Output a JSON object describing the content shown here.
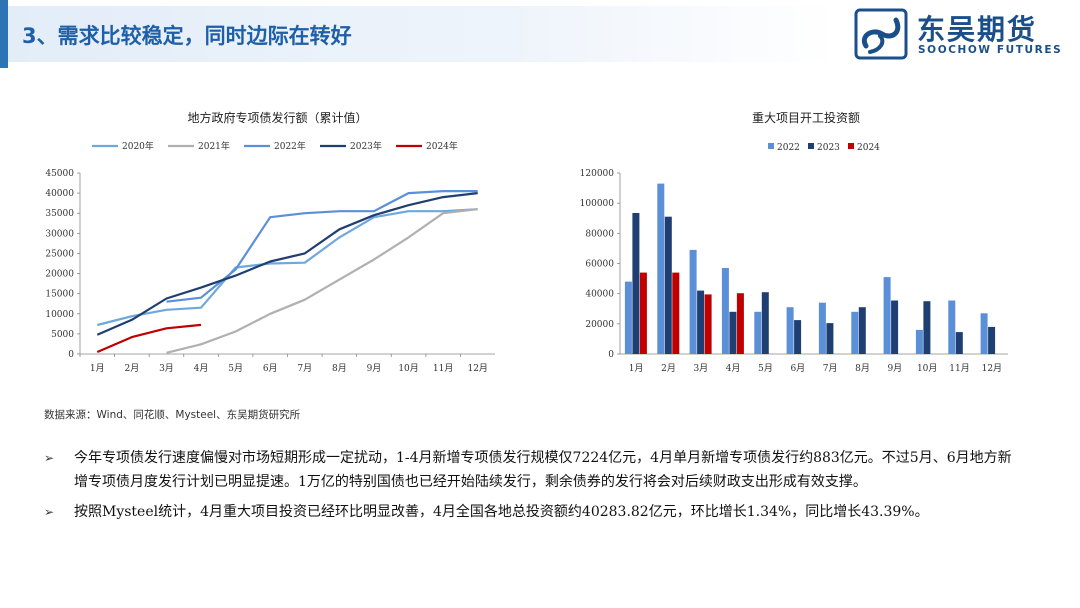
{
  "header": {
    "title": "3、需求比较稳定，同时边际在转好",
    "logo_name": "东吴期货",
    "logo_sub": "SOOCHOW FUTURES"
  },
  "chart_data": [
    {
      "type": "line",
      "title": "地方政府专项债发行额（累计值）",
      "categories": [
        "1月",
        "2月",
        "3月",
        "4月",
        "5月",
        "6月",
        "7月",
        "8月",
        "9月",
        "10月",
        "11月",
        "12月"
      ],
      "ylim": [
        0,
        45000
      ],
      "yticks": [
        0,
        5000,
        10000,
        15000,
        20000,
        25000,
        30000,
        35000,
        40000,
        45000
      ],
      "legend_position": "top",
      "grid": false,
      "series": [
        {
          "name": "2020年",
          "color": "#6fa8dc",
          "values": [
            7200,
            9400,
            11000,
            11500,
            21500,
            22500,
            22700,
            29000,
            34000,
            35500,
            35500,
            36000
          ]
        },
        {
          "name": "2021年",
          "color": "#b0b0b0",
          "values": [
            null,
            null,
            300,
            2400,
            5600,
            10000,
            13500,
            18500,
            23500,
            29000,
            35000,
            36000
          ]
        },
        {
          "name": "2022年",
          "color": "#5b8fd8",
          "values": [
            null,
            null,
            13000,
            14000,
            21000,
            34000,
            35000,
            35500,
            35500,
            40000,
            40500,
            40500
          ]
        },
        {
          "name": "2023年",
          "color": "#1f3f73",
          "values": [
            4800,
            8500,
            13800,
            16500,
            19500,
            23000,
            25000,
            31000,
            34500,
            37000,
            39000,
            40000
          ]
        },
        {
          "name": "2024年",
          "color": "#c00000",
          "values": [
            500,
            4200,
            6400,
            7224,
            null,
            null,
            null,
            null,
            null,
            null,
            null,
            null
          ]
        }
      ]
    },
    {
      "type": "bar",
      "title": "重大项目开工投资额",
      "categories": [
        "1月",
        "2月",
        "3月",
        "4月",
        "5月",
        "6月",
        "7月",
        "8月",
        "9月",
        "10月",
        "11月",
        "12月"
      ],
      "ylim": [
        0,
        120000
      ],
      "yticks": [
        0,
        20000,
        40000,
        60000,
        80000,
        100000,
        120000
      ],
      "legend_position": "top",
      "grid": false,
      "series": [
        {
          "name": "2022",
          "color": "#5b8fd8",
          "values": [
            48000,
            113000,
            69000,
            57000,
            28000,
            31000,
            34000,
            28000,
            51000,
            16000,
            35500,
            27000
          ]
        },
        {
          "name": "2023",
          "color": "#1f3f73",
          "values": [
            93500,
            91000,
            42000,
            28000,
            41000,
            22500,
            20500,
            31000,
            35500,
            35000,
            14500,
            18000
          ]
        },
        {
          "name": "2024",
          "color": "#c00000",
          "values": [
            54000,
            54000,
            39500,
            40283.82,
            null,
            null,
            null,
            null,
            null,
            null,
            null,
            null
          ]
        }
      ]
    }
  ],
  "source": "数据来源：Wind、同花顺、Mysteel、东吴期货研究所",
  "bullets": [
    "今年专项债发行速度偏慢对市场短期形成一定扰动，1-4月新增专项债发行规模仅7224亿元，4月单月新增专项债发行约883亿元。不过5月、6月地方新增专项债月度发行计划已明显提速。1万亿的特别国债也已经开始陆续发行，剩余债券的发行将会对后续财政支出形成有效支撑。",
    "按照Mysteel统计，4月重大项目投资已经环比明显改善，4月全国各地总投资额约40283.82亿元，环比增长1.34%，同比增长43.39%。"
  ],
  "bullet_mark": "➢"
}
